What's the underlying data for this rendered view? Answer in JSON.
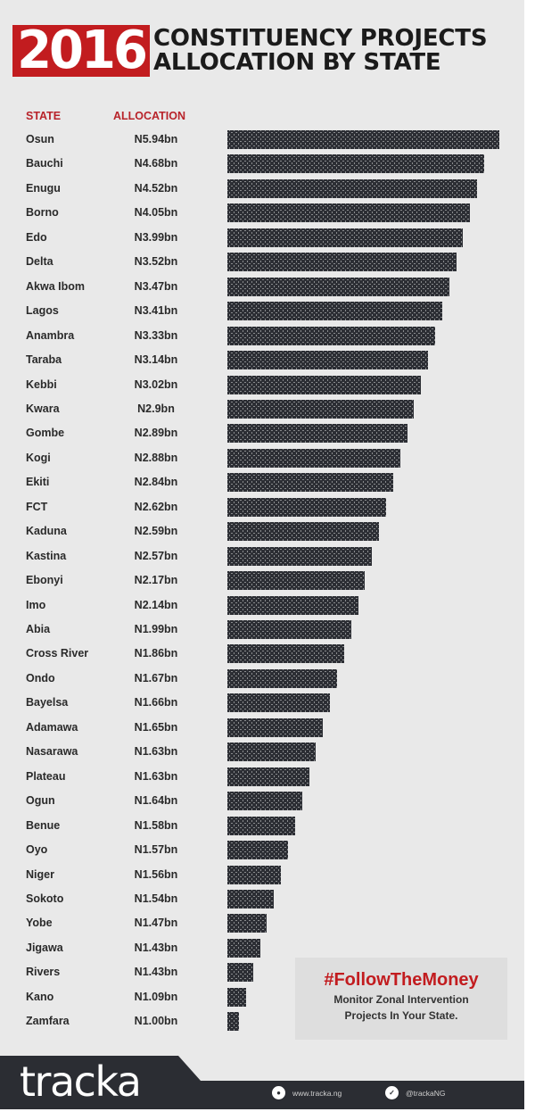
{
  "header": {
    "year": "2016",
    "title_line1": "CONSTITUENCY PROJECTS",
    "title_line2": "ALLOCATION BY STATE",
    "accent_color": "#c21c1f"
  },
  "columns": {
    "state": "STATE",
    "allocation": "ALLOCATION"
  },
  "rows": [
    {
      "state": "Osun",
      "allocation": "N5.94bn"
    },
    {
      "state": "Bauchi",
      "allocation": "N4.68bn"
    },
    {
      "state": "Enugu",
      "allocation": "N4.52bn"
    },
    {
      "state": "Borno",
      "allocation": "N4.05bn"
    },
    {
      "state": "Edo",
      "allocation": "N3.99bn"
    },
    {
      "state": "Delta",
      "allocation": "N3.52bn"
    },
    {
      "state": "Akwa Ibom",
      "allocation": "N3.47bn"
    },
    {
      "state": "Lagos",
      "allocation": "N3.41bn"
    },
    {
      "state": "Anambra",
      "allocation": "N3.33bn"
    },
    {
      "state": "Taraba",
      "allocation": "N3.14bn"
    },
    {
      "state": "Kebbi",
      "allocation": "N3.02bn"
    },
    {
      "state": "Kwara",
      "allocation": "N2.9bn"
    },
    {
      "state": "Gombe",
      "allocation": "N2.89bn"
    },
    {
      "state": "Kogi",
      "allocation": "N2.88bn"
    },
    {
      "state": "Ekiti",
      "allocation": "N2.84bn"
    },
    {
      "state": "FCT",
      "allocation": "N2.62bn"
    },
    {
      "state": "Kaduna",
      "allocation": "N2.59bn"
    },
    {
      "state": "Kastina",
      "allocation": "N2.57bn"
    },
    {
      "state": "Ebonyi",
      "allocation": "N2.17bn"
    },
    {
      "state": "Imo",
      "allocation": "N2.14bn"
    },
    {
      "state": "Abia",
      "allocation": "N1.99bn"
    },
    {
      "state": "Cross River",
      "allocation": "N1.86bn"
    },
    {
      "state": "Ondo",
      "allocation": "N1.67bn"
    },
    {
      "state": "Bayelsa",
      "allocation": "N1.66bn"
    },
    {
      "state": "Adamawa",
      "allocation": "N1.65bn"
    },
    {
      "state": "Nasarawa",
      "allocation": "N1.63bn"
    },
    {
      "state": "Plateau",
      "allocation": "N1.63bn"
    },
    {
      "state": "Ogun",
      "allocation": "N1.64bn"
    },
    {
      "state": "Benue",
      "allocation": "N1.58bn"
    },
    {
      "state": "Oyo",
      "allocation": "N1.57bn"
    },
    {
      "state": "Niger",
      "allocation": "N1.56bn"
    },
    {
      "state": "Sokoto",
      "allocation": "N1.54bn"
    },
    {
      "state": "Yobe",
      "allocation": "N1.47bn"
    },
    {
      "state": "Jigawa",
      "allocation": "N1.43bn"
    },
    {
      "state": "Rivers",
      "allocation": "N1.43bn"
    },
    {
      "state": "Kano",
      "allocation": "N1.09bn"
    },
    {
      "state": "Zamfara",
      "allocation": "N1.00bn"
    }
  ],
  "promo": {
    "hashtag": "#FollowTheMoney",
    "line1": "Monitor Zonal Intervention",
    "line2": "Projects In Your State."
  },
  "footer": {
    "logo": "tracka",
    "website": "www.tracka.ng",
    "twitter": "@trackaNG"
  },
  "chart_data": {
    "type": "bar",
    "orientation": "horizontal",
    "title": "2016 CONSTITUENCY PROJECTS ALLOCATION BY STATE",
    "xlabel": "",
    "ylabel": "STATE",
    "value_label": "ALLOCATION (N billion)",
    "categories": [
      "Osun",
      "Bauchi",
      "Enugu",
      "Borno",
      "Edo",
      "Delta",
      "Akwa Ibom",
      "Lagos",
      "Anambra",
      "Taraba",
      "Kebbi",
      "Kwara",
      "Gombe",
      "Kogi",
      "Ekiti",
      "FCT",
      "Kaduna",
      "Kastina",
      "Ebonyi",
      "Imo",
      "Abia",
      "Cross River",
      "Ondo",
      "Bayelsa",
      "Adamawa",
      "Nasarawa",
      "Plateau",
      "Ogun",
      "Benue",
      "Oyo",
      "Niger",
      "Sokoto",
      "Yobe",
      "Jigawa",
      "Rivers",
      "Kano",
      "Zamfara"
    ],
    "values": [
      5.94,
      4.68,
      4.52,
      4.05,
      3.99,
      3.52,
      3.47,
      3.41,
      3.33,
      3.14,
      3.02,
      2.9,
      2.89,
      2.88,
      2.84,
      2.62,
      2.59,
      2.57,
      2.17,
      2.14,
      1.99,
      1.86,
      1.67,
      1.66,
      1.65,
      1.63,
      1.63,
      1.64,
      1.58,
      1.57,
      1.56,
      1.54,
      1.47,
      1.43,
      1.43,
      1.09,
      1.0
    ],
    "unit": "N billion",
    "bar_style": "dotted pattern, lengths decrease linearly by rank",
    "grid": false,
    "legend": null
  }
}
